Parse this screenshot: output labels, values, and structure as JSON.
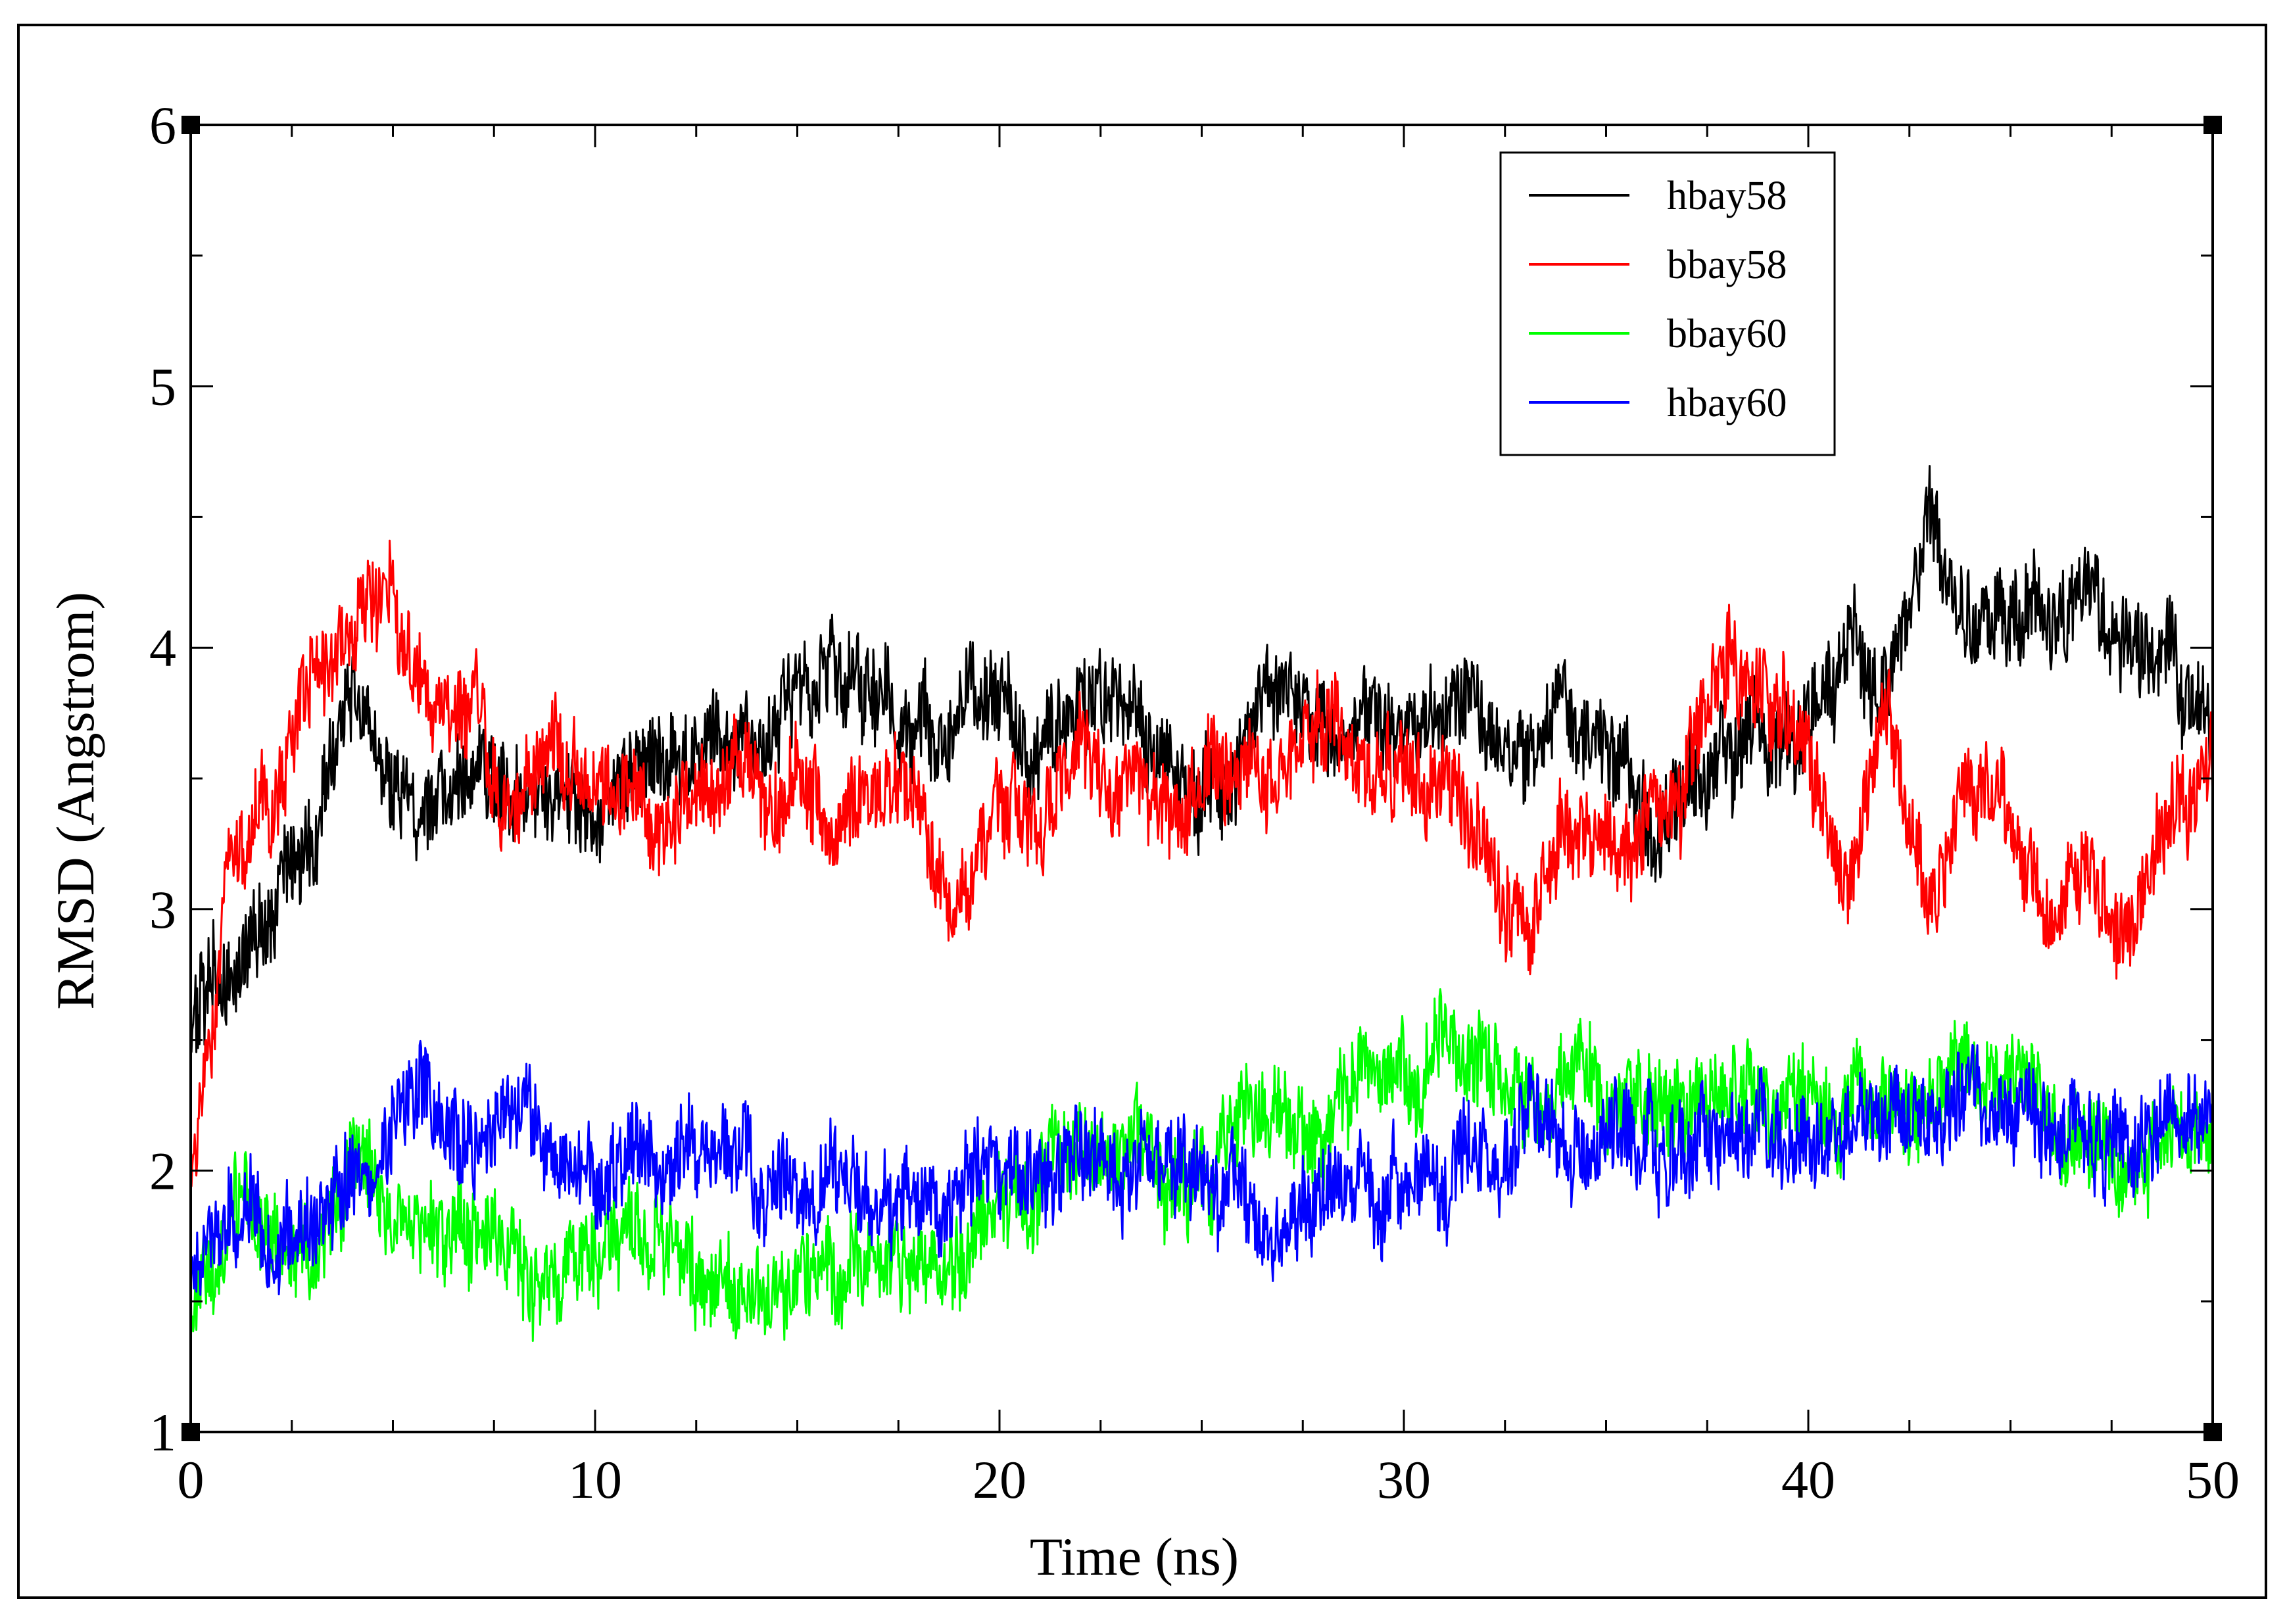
{
  "chart_data": {
    "type": "line",
    "title": "",
    "xlabel": "Time (ns)",
    "ylabel": "RMSD (Angstrom)",
    "xlim": [
      0,
      50
    ],
    "ylim": [
      1,
      6
    ],
    "xticks": [
      0,
      10,
      20,
      30,
      40,
      50
    ],
    "xtick_labels": [
      "0",
      "10",
      "20",
      "30",
      "40",
      "50"
    ],
    "yticks": [
      1,
      2,
      3,
      4,
      5,
      6
    ],
    "ytick_labels": [
      "1",
      "2",
      "3",
      "4",
      "5",
      "6"
    ],
    "grid": false,
    "legend_position": "top-right",
    "x": [
      0,
      1,
      2,
      3,
      4,
      5,
      6,
      7,
      8,
      9,
      10,
      11,
      12,
      13,
      14,
      15,
      16,
      17,
      18,
      19,
      20,
      21,
      22,
      23,
      24,
      25,
      26,
      27,
      28,
      29,
      30,
      31,
      32,
      33,
      34,
      35,
      36,
      37,
      38,
      39,
      40,
      41,
      42,
      43,
      44,
      45,
      46,
      47,
      48,
      49,
      50
    ],
    "series": [
      {
        "name": "hbay58",
        "color": "#000000",
        "values": [
          2.5,
          2.8,
          2.9,
          3.3,
          3.9,
          3.4,
          3.3,
          3.6,
          3.5,
          3.4,
          3.4,
          3.5,
          3.6,
          3.6,
          3.7,
          3.8,
          3.9,
          3.8,
          3.6,
          3.7,
          3.8,
          3.5,
          3.9,
          3.9,
          3.6,
          3.4,
          3.6,
          3.8,
          3.7,
          3.7,
          3.8,
          3.8,
          3.7,
          3.6,
          3.8,
          3.6,
          3.3,
          3.5,
          3.6,
          3.6,
          3.7,
          3.9,
          3.8,
          4.4,
          4.1,
          4.2,
          4.1,
          4.1,
          4.0,
          4.0,
          3.7
        ]
      },
      {
        "name": "bbay58",
        "color": "#ff0000",
        "values": [
          1.9,
          3.2,
          3.5,
          3.9,
          4.0,
          4.2,
          3.7,
          3.7,
          3.3,
          3.6,
          3.5,
          3.4,
          3.3,
          3.4,
          3.5,
          3.5,
          3.2,
          3.5,
          3.4,
          3.1,
          3.4,
          3.3,
          3.6,
          3.4,
          3.3,
          3.5,
          3.6,
          3.5,
          3.7,
          3.5,
          3.6,
          3.5,
          3.2,
          2.9,
          3.4,
          3.3,
          3.3,
          3.5,
          4.0,
          3.8,
          3.6,
          3.0,
          3.8,
          3.0,
          3.5,
          3.4,
          2.9,
          3.2,
          2.9,
          3.4,
          3.5
        ]
      },
      {
        "name": "bbay60",
        "color": "#00ff00",
        "values": [
          1.4,
          1.9,
          1.8,
          1.7,
          2.0,
          1.8,
          1.7,
          1.7,
          1.6,
          1.6,
          1.7,
          1.8,
          1.6,
          1.5,
          1.6,
          1.6,
          1.5,
          1.7,
          1.6,
          1.6,
          1.8,
          2.0,
          2.1,
          2.1,
          2.0,
          1.9,
          2.2,
          2.3,
          2.2,
          2.4,
          2.3,
          2.5,
          2.4,
          2.3,
          2.4,
          2.3,
          2.3,
          2.2,
          2.3,
          2.3,
          2.2,
          2.3,
          2.2,
          2.3,
          2.4,
          2.4,
          2.3,
          2.1,
          2.0,
          2.1,
          2.1
        ]
      },
      {
        "name": "hbay60",
        "color": "#0000ff",
        "values": [
          1.6,
          1.8,
          1.7,
          1.8,
          2.0,
          2.1,
          2.3,
          2.1,
          2.2,
          2.1,
          2.0,
          2.1,
          2.0,
          2.1,
          2.0,
          1.9,
          2.0,
          1.9,
          1.9,
          2.0,
          2.0,
          2.0,
          2.1,
          2.0,
          2.0,
          1.9,
          1.9,
          1.8,
          1.9,
          1.9,
          1.9,
          2.0,
          2.1,
          2.2,
          2.1,
          2.1,
          2.1,
          2.1,
          2.2,
          2.1,
          2.1,
          2.2,
          2.2,
          2.2,
          2.3,
          2.3,
          2.2,
          2.1,
          2.1,
          2.2,
          2.1
        ]
      }
    ]
  }
}
